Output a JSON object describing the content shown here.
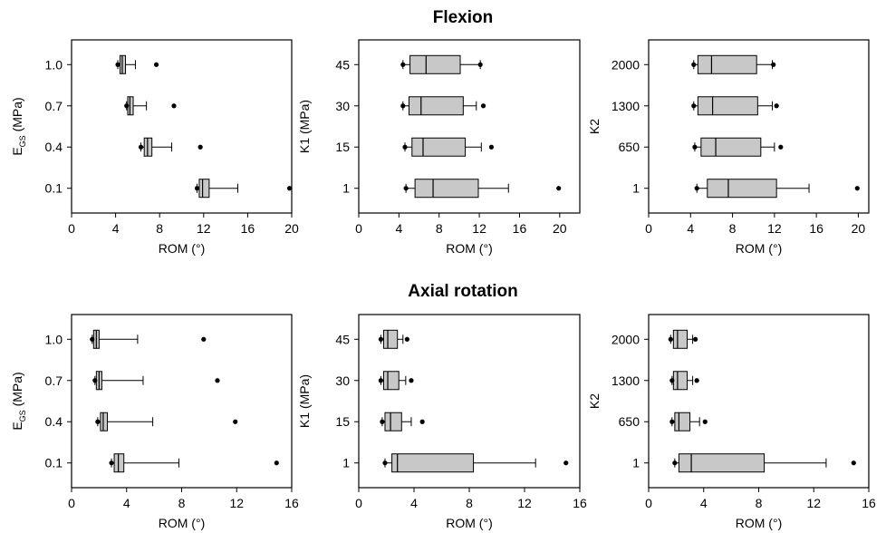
{
  "figure": {
    "section_titles": [
      "Flexion",
      "Axial rotation"
    ]
  },
  "style": {
    "box_fill": "#c8c8c8",
    "stroke": "#000000",
    "background": "#ffffff"
  },
  "chart_data": [
    {
      "type": "box",
      "id": "flex-egs",
      "section": "Flexion",
      "orientation": "horizontal",
      "xlabel": "ROM (°)",
      "ylabel_main": "E",
      "ylabel_sub": "GS",
      "ylabel_rest": " (MPa)",
      "xlim": [
        0,
        20
      ],
      "xticks": [
        0,
        4,
        8,
        12,
        16,
        20
      ],
      "categories": [
        "1.0",
        "0.7",
        "0.4",
        "0.1"
      ],
      "boxes": [
        {
          "min": 4.2,
          "q1": 4.4,
          "median": 4.6,
          "q3": 4.9,
          "max": 5.8,
          "outliers": [
            4.2,
            7.7
          ]
        },
        {
          "min": 5.0,
          "q1": 5.1,
          "median": 5.3,
          "q3": 5.6,
          "max": 6.8,
          "outliers": [
            5.0,
            9.3
          ]
        },
        {
          "min": 6.3,
          "q1": 6.6,
          "median": 6.9,
          "q3": 7.3,
          "max": 9.1,
          "outliers": [
            6.3,
            11.7
          ]
        },
        {
          "min": 11.4,
          "q1": 11.6,
          "median": 11.9,
          "q3": 12.5,
          "max": 15.1,
          "outliers": [
            11.4,
            19.8
          ]
        }
      ]
    },
    {
      "type": "box",
      "id": "flex-k1",
      "section": "Flexion",
      "orientation": "horizontal",
      "xlabel": "ROM (°)",
      "ylabel_main": "K1 (MPa)",
      "xlim": [
        0,
        22
      ],
      "xticks": [
        0,
        4,
        8,
        12,
        16,
        20
      ],
      "categories": [
        "45",
        "30",
        "15",
        "1"
      ],
      "boxes": [
        {
          "min": 4.4,
          "q1": 5.1,
          "median": 6.7,
          "q3": 10.1,
          "max": 12.1,
          "outliers": [
            4.4,
            12.1
          ]
        },
        {
          "min": 4.4,
          "q1": 5.0,
          "median": 6.2,
          "q3": 10.4,
          "max": 11.7,
          "outliers": [
            4.4,
            12.4
          ]
        },
        {
          "min": 4.6,
          "q1": 5.3,
          "median": 6.4,
          "q3": 10.6,
          "max": 12.2,
          "outliers": [
            4.6,
            13.2
          ]
        },
        {
          "min": 4.7,
          "q1": 5.6,
          "median": 7.4,
          "q3": 11.9,
          "max": 14.9,
          "outliers": [
            4.7,
            19.9
          ]
        }
      ]
    },
    {
      "type": "box",
      "id": "flex-k2",
      "section": "Flexion",
      "orientation": "horizontal",
      "xlabel": "ROM (°)",
      "ylabel_main": "K2",
      "xlim": [
        0,
        21
      ],
      "xticks": [
        0,
        4,
        8,
        12,
        16,
        20
      ],
      "categories": [
        "2000",
        "1300",
        "650",
        "1"
      ],
      "boxes": [
        {
          "min": 4.3,
          "q1": 4.7,
          "median": 6.0,
          "q3": 10.3,
          "max": 11.8,
          "outliers": [
            4.3,
            11.9
          ]
        },
        {
          "min": 4.3,
          "q1": 4.7,
          "median": 6.1,
          "q3": 10.4,
          "max": 11.8,
          "outliers": [
            4.3,
            12.2
          ]
        },
        {
          "min": 4.4,
          "q1": 5.0,
          "median": 6.4,
          "q3": 10.7,
          "max": 12.0,
          "outliers": [
            4.4,
            12.6
          ]
        },
        {
          "min": 4.6,
          "q1": 5.6,
          "median": 7.6,
          "q3": 12.2,
          "max": 15.3,
          "outliers": [
            4.6,
            19.9
          ]
        }
      ]
    },
    {
      "type": "box",
      "id": "axial-egs",
      "section": "Axial rotation",
      "orientation": "horizontal",
      "xlabel": "ROM (°)",
      "ylabel_main": "E",
      "ylabel_sub": "GS",
      "ylabel_rest": " (MPa)",
      "xlim": [
        0,
        16
      ],
      "xticks": [
        0,
        4,
        8,
        12,
        16
      ],
      "categories": [
        "1.0",
        "0.7",
        "0.4",
        "0.1"
      ],
      "boxes": [
        {
          "min": 1.5,
          "q1": 1.6,
          "median": 1.8,
          "q3": 2.0,
          "max": 4.8,
          "outliers": [
            1.5,
            9.6
          ]
        },
        {
          "min": 1.7,
          "q1": 1.8,
          "median": 2.0,
          "q3": 2.2,
          "max": 5.2,
          "outliers": [
            1.7,
            10.6
          ]
        },
        {
          "min": 1.9,
          "q1": 2.1,
          "median": 2.3,
          "q3": 2.6,
          "max": 5.9,
          "outliers": [
            1.9,
            11.9
          ]
        },
        {
          "min": 2.9,
          "q1": 3.1,
          "median": 3.4,
          "q3": 3.8,
          "max": 7.8,
          "outliers": [
            2.9,
            14.9
          ]
        }
      ]
    },
    {
      "type": "box",
      "id": "axial-k1",
      "section": "Axial rotation",
      "orientation": "horizontal",
      "xlabel": "ROM (°)",
      "ylabel_main": "K1 (MPa)",
      "xlim": [
        0,
        16
      ],
      "xticks": [
        0,
        4,
        8,
        12,
        16
      ],
      "categories": [
        "45",
        "30",
        "15",
        "1"
      ],
      "boxes": [
        {
          "min": 1.6,
          "q1": 1.8,
          "median": 2.1,
          "q3": 2.8,
          "max": 3.2,
          "outliers": [
            1.6,
            3.5
          ]
        },
        {
          "min": 1.6,
          "q1": 1.8,
          "median": 2.1,
          "q3": 2.9,
          "max": 3.4,
          "outliers": [
            1.6,
            3.8
          ]
        },
        {
          "min": 1.7,
          "q1": 1.9,
          "median": 2.3,
          "q3": 3.1,
          "max": 3.8,
          "outliers": [
            1.7,
            4.6
          ]
        },
        {
          "min": 1.9,
          "q1": 2.4,
          "median": 2.8,
          "q3": 8.3,
          "max": 12.8,
          "outliers": [
            1.9,
            15.0
          ]
        }
      ]
    },
    {
      "type": "box",
      "id": "axial-k2",
      "section": "Axial rotation",
      "orientation": "horizontal",
      "xlabel": "ROM (°)",
      "ylabel_main": "K2",
      "xlim": [
        0,
        16
      ],
      "xticks": [
        0,
        4,
        8,
        12,
        16
      ],
      "categories": [
        "2000",
        "1300",
        "650",
        "1"
      ],
      "boxes": [
        {
          "min": 1.6,
          "q1": 1.8,
          "median": 2.1,
          "q3": 2.8,
          "max": 3.2,
          "outliers": [
            1.6,
            3.4
          ]
        },
        {
          "min": 1.7,
          "q1": 1.8,
          "median": 2.1,
          "q3": 2.8,
          "max": 3.2,
          "outliers": [
            1.7,
            3.5
          ]
        },
        {
          "min": 1.7,
          "q1": 1.9,
          "median": 2.2,
          "q3": 3.0,
          "max": 3.7,
          "outliers": [
            1.7,
            4.1
          ]
        },
        {
          "min": 1.9,
          "q1": 2.2,
          "median": 3.1,
          "q3": 8.4,
          "max": 12.9,
          "outliers": [
            1.9,
            14.9
          ]
        }
      ]
    }
  ]
}
